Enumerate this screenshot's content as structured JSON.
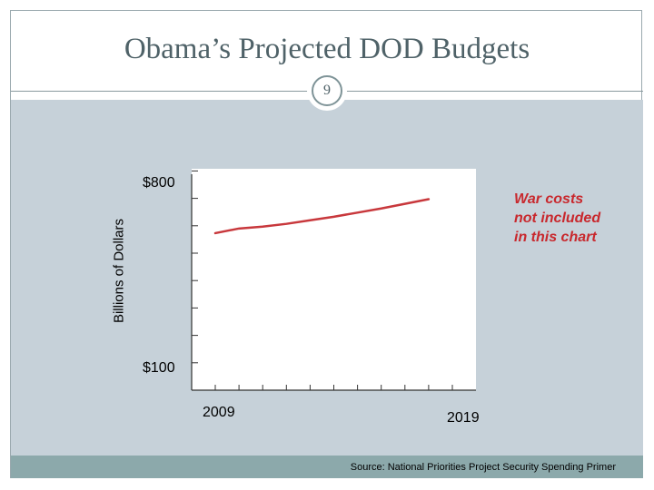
{
  "slide": {
    "title": "Obama’s Projected DOD Budgets",
    "page_number": "9",
    "source": "Source: National Priorities Project Security Spending Primer"
  },
  "chart_data": {
    "type": "line",
    "title": "",
    "ylabel": "Billions of Dollars",
    "xlabel": "",
    "ytick_labels": [
      "$800",
      "$100"
    ],
    "xtick_labels": [
      "2009",
      "2019"
    ],
    "ylim": [
      0,
      800
    ],
    "xlim": [
      2008,
      2020
    ],
    "annotation": [
      "War costs",
      "not included",
      "in this chart"
    ],
    "line_color": "#c8383c",
    "x": [
      2009,
      2010,
      2011,
      2012,
      2013,
      2014,
      2015,
      2016,
      2017,
      2018
    ],
    "values": [
      573,
      590,
      597,
      607,
      620,
      633,
      648,
      663,
      680,
      697
    ]
  }
}
